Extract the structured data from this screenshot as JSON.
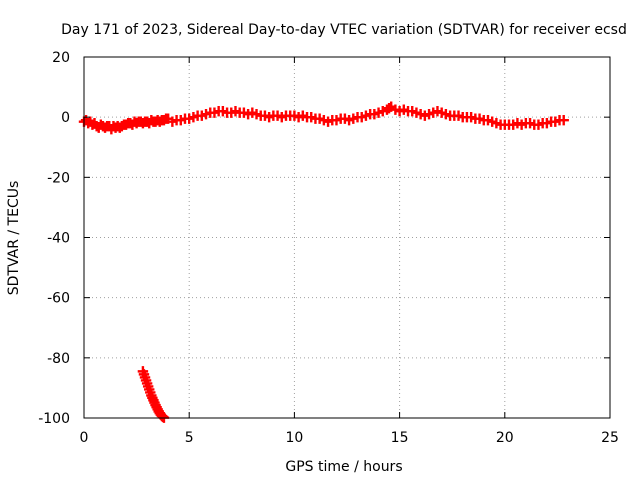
{
  "chart_data": {
    "type": "scatter",
    "title": "Day 171 of 2023, Sidereal Day-to-day VTEC variation (SDTVAR) for receiver ecsd",
    "xlabel": "GPS time / hours",
    "ylabel": "SDTVAR / TECUs",
    "xlim": [
      0,
      25
    ],
    "ylim": [
      -100,
      20
    ],
    "xticks": [
      0,
      5,
      10,
      15,
      20,
      25
    ],
    "yticks": [
      -100,
      -80,
      -60,
      -40,
      -20,
      0,
      20
    ],
    "grid": true,
    "marker": "plus",
    "series": [
      {
        "name": "main",
        "color": "#ff0000",
        "x": [
          0.0,
          0.1,
          0.2,
          0.3,
          0.4,
          0.5,
          0.6,
          0.7,
          0.8,
          0.9,
          1.0,
          1.1,
          1.2,
          1.3,
          1.4,
          1.5,
          1.6,
          1.7,
          1.8,
          1.9,
          2.0,
          2.1,
          2.2,
          2.3,
          2.4,
          2.5,
          2.6,
          2.7,
          2.8,
          2.9,
          3.0,
          3.1,
          3.2,
          3.3,
          3.4,
          3.5,
          3.6,
          3.7,
          3.8,
          3.9,
          4.0,
          4.2,
          4.4,
          4.6,
          4.8,
          5.0,
          5.2,
          5.4,
          5.6,
          5.8,
          6.0,
          6.2,
          6.4,
          6.6,
          6.8,
          7.0,
          7.2,
          7.4,
          7.6,
          7.8,
          8.0,
          8.2,
          8.4,
          8.6,
          8.8,
          9.0,
          9.2,
          9.4,
          9.6,
          9.8,
          10.0,
          10.2,
          10.4,
          10.6,
          10.8,
          11.0,
          11.2,
          11.4,
          11.6,
          11.8,
          12.0,
          12.2,
          12.4,
          12.6,
          12.8,
          13.0,
          13.2,
          13.4,
          13.6,
          13.8,
          14.0,
          14.2,
          14.4,
          14.5,
          14.6,
          14.8,
          15.0,
          15.2,
          15.4,
          15.6,
          15.8,
          16.0,
          16.2,
          16.4,
          16.6,
          16.8,
          17.0,
          17.2,
          17.4,
          17.6,
          17.8,
          18.0,
          18.2,
          18.4,
          18.6,
          18.8,
          19.0,
          19.2,
          19.4,
          19.6,
          19.8,
          20.0,
          20.2,
          20.4,
          20.6,
          20.8,
          21.0,
          21.2,
          21.4,
          21.6,
          21.8,
          22.0,
          22.2,
          22.4,
          22.6,
          22.8
        ],
        "y": [
          -1.5,
          -1.0,
          -2.0,
          -1.5,
          -2.5,
          -2.0,
          -3.0,
          -3.5,
          -2.5,
          -3.0,
          -3.5,
          -3.0,
          -3.0,
          -4.0,
          -3.0,
          -3.5,
          -3.0,
          -3.5,
          -3.0,
          -2.5,
          -2.5,
          -2.0,
          -2.0,
          -2.5,
          -1.5,
          -2.0,
          -1.5,
          -1.5,
          -2.0,
          -1.5,
          -1.5,
          -2.0,
          -1.0,
          -1.5,
          -1.5,
          -1.0,
          -1.5,
          -1.0,
          -1.0,
          -0.5,
          -0.5,
          -1.5,
          -1.0,
          -1.0,
          -0.5,
          -0.5,
          0.0,
          0.5,
          0.5,
          1.0,
          1.5,
          1.5,
          2.0,
          2.0,
          1.5,
          1.5,
          2.0,
          1.5,
          1.5,
          1.0,
          1.5,
          1.0,
          0.5,
          0.5,
          0.0,
          0.5,
          0.5,
          0.0,
          0.5,
          0.5,
          0.5,
          0.0,
          0.5,
          0.0,
          0.0,
          -0.5,
          -0.5,
          -1.0,
          -1.5,
          -1.0,
          -1.0,
          -0.5,
          -0.5,
          -1.0,
          -0.5,
          0.0,
          0.0,
          0.5,
          1.0,
          1.0,
          1.5,
          2.0,
          2.5,
          3.0,
          3.5,
          2.5,
          2.0,
          2.5,
          2.0,
          2.0,
          1.5,
          1.0,
          0.5,
          1.0,
          1.5,
          2.0,
          1.5,
          1.0,
          0.5,
          0.5,
          0.5,
          0.0,
          0.0,
          0.0,
          -0.5,
          -0.5,
          -1.0,
          -1.0,
          -1.5,
          -2.0,
          -2.5,
          -2.5,
          -2.5,
          -2.5,
          -2.0,
          -2.5,
          -2.0,
          -2.0,
          -2.5,
          -2.5,
          -2.0,
          -2.0,
          -1.5,
          -1.5,
          -1.0,
          -1.0
        ]
      },
      {
        "name": "outlier-tail",
        "color": "#ff0000",
        "x": [
          2.8,
          2.85,
          2.9,
          2.95,
          3.0,
          3.05,
          3.1,
          3.15,
          3.2,
          3.25,
          3.3,
          3.35,
          3.4,
          3.45,
          3.5,
          3.55,
          3.6,
          3.65,
          3.7,
          3.75,
          3.8
        ],
        "y": [
          -84.5,
          -85.5,
          -86.5,
          -87.5,
          -88.5,
          -89.5,
          -90.5,
          -91.5,
          -92.5,
          -93.3,
          -94.1,
          -94.9,
          -95.7,
          -96.4,
          -97.1,
          -97.8,
          -98.4,
          -98.9,
          -99.3,
          -99.6,
          -99.9
        ]
      }
    ]
  }
}
